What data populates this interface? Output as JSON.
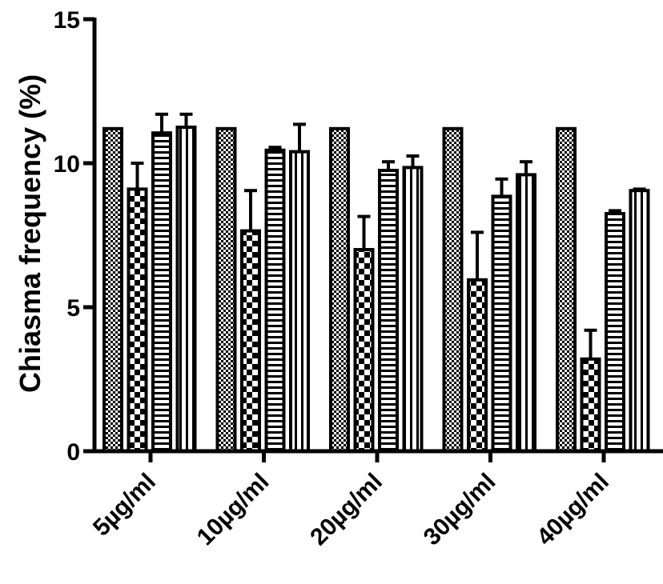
{
  "chart_data": {
    "type": "bar",
    "title": "",
    "xlabel": "",
    "ylabel": "Chiasma frequency (%)",
    "ylim": [
      0,
      15
    ],
    "yticks": [
      0,
      5,
      10,
      15
    ],
    "yticks_labels": [
      "0",
      "5",
      "10",
      "15"
    ],
    "categories": [
      "5µg/ml",
      "10µg/ml",
      "20µg/ml",
      "30µg/ml",
      "40µg/ml"
    ],
    "grid": false,
    "legend": "none",
    "series": [
      {
        "pattern": "fine-checker",
        "values": [
          11.2,
          11.2,
          11.2,
          11.2,
          11.2
        ],
        "errors": [
          0,
          0,
          0,
          0,
          0
        ]
      },
      {
        "pattern": "checker",
        "values": [
          9.1,
          7.65,
          7.0,
          5.95,
          3.2
        ],
        "errors": [
          0.9,
          1.4,
          1.15,
          1.65,
          1.0
        ]
      },
      {
        "pattern": "horizontal-lines",
        "values": [
          11.05,
          10.45,
          9.75,
          8.85,
          8.25
        ],
        "errors": [
          0.65,
          0.1,
          0.3,
          0.6,
          0.1
        ]
      },
      {
        "pattern": "vertical-lines",
        "values": [
          11.25,
          10.4,
          9.85,
          9.6,
          9.05
        ],
        "errors": [
          0.45,
          0.95,
          0.4,
          0.45,
          0.05
        ]
      }
    ]
  }
}
